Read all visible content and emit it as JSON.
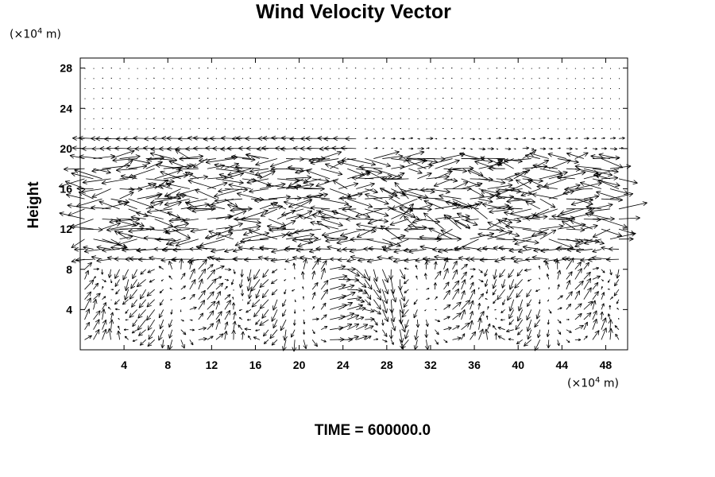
{
  "chart_data": {
    "type": "vector_field",
    "title": "Wind Velocity Vector",
    "ylabel": "Height",
    "x_unit_base": "(×10",
    "x_unit_exp": "4",
    "x_unit_tail": " m)",
    "y_unit_base": "(×10",
    "y_unit_exp": "4",
    "y_unit_tail": " m)",
    "footer": "TIME = 600000.0",
    "xlim": [
      0,
      50
    ],
    "ylim": [
      0,
      29
    ],
    "x_ticks": [
      4,
      8,
      12,
      16,
      20,
      24,
      28,
      32,
      36,
      40,
      44,
      48
    ],
    "y_ticks": [
      4,
      8,
      12,
      16,
      20,
      24,
      28
    ],
    "grid": false,
    "vector_grid": {
      "x_start": 0.4,
      "x_step": 0.8,
      "x_count": 62,
      "y_start": 1.0,
      "y_step": 1.0,
      "y_count": 28
    }
  }
}
